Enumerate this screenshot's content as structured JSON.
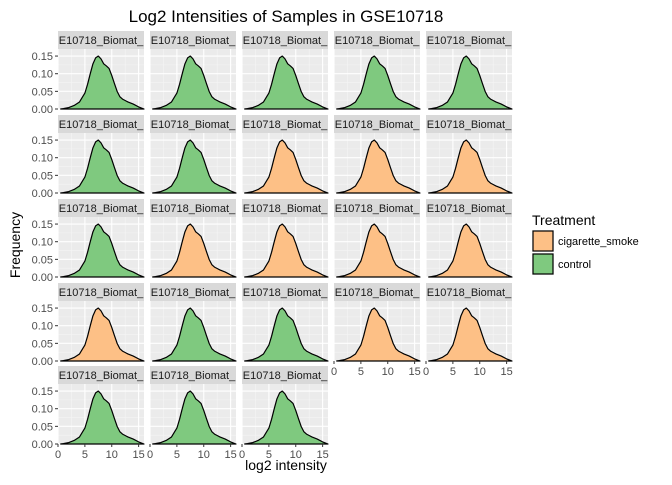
{
  "chart_data": {
    "type": "area",
    "title": "Log2 Intensities of Samples in GSE10718",
    "xlabel": "log2 intensity",
    "ylabel": "Frequency",
    "xlim": [
      0,
      16
    ],
    "ylim": [
      0,
      0.17
    ],
    "x_ticks": [
      0,
      5,
      10,
      15
    ],
    "x_tick_labels": [
      "0",
      "5",
      "10",
      "15"
    ],
    "y_ticks": [
      0,
      0.05,
      0.1,
      0.15
    ],
    "y_tick_labels": [
      "0.00",
      "0.05",
      "0.10",
      "0.15"
    ],
    "grid": true,
    "legend": {
      "title": "Treatment",
      "placement": "right",
      "entries": [
        {
          "label": "cigarette_smoke",
          "color": "#fdc086"
        },
        {
          "label": "control",
          "color": "#7fc97f"
        }
      ]
    },
    "facet_columns": 5,
    "facet_label_text": "E10718_Bioma",
    "density_x": [
      0.5,
      1,
      2,
      3,
      4,
      5,
      5.5,
      6,
      6.5,
      7,
      7.5,
      8,
      8.5,
      9,
      9.5,
      10,
      10.5,
      11,
      11.5,
      12,
      12.5,
      13,
      14,
      15,
      16
    ],
    "density_y": [
      0.0,
      0.001,
      0.004,
      0.01,
      0.02,
      0.045,
      0.07,
      0.1,
      0.128,
      0.145,
      0.15,
      0.142,
      0.128,
      0.122,
      0.115,
      0.095,
      0.072,
      0.05,
      0.035,
      0.028,
      0.024,
      0.02,
      0.014,
      0.006,
      0.0
    ],
    "panels": [
      {
        "label": "E10718_Biomat_",
        "treatment": "control"
      },
      {
        "label": "E10718_Biomat_",
        "treatment": "control"
      },
      {
        "label": "E10718_Biomat_",
        "treatment": "control"
      },
      {
        "label": "E10718_Biomat_",
        "treatment": "control"
      },
      {
        "label": "E10718_Biomat_",
        "treatment": "control"
      },
      {
        "label": "E10718_Biomat_",
        "treatment": "control"
      },
      {
        "label": "E10718_Biomat_",
        "treatment": "control"
      },
      {
        "label": "E10718_Biomat_",
        "treatment": "cigarette_smoke"
      },
      {
        "label": "E10718_Biomat_",
        "treatment": "cigarette_smoke"
      },
      {
        "label": "E10718_Biomat_",
        "treatment": "cigarette_smoke"
      },
      {
        "label": "E10718_Biomat_",
        "treatment": "control"
      },
      {
        "label": "E10718_Biomat_",
        "treatment": "cigarette_smoke"
      },
      {
        "label": "E10718_Biomat_",
        "treatment": "cigarette_smoke"
      },
      {
        "label": "E10718_Biomat_",
        "treatment": "cigarette_smoke"
      },
      {
        "label": "E10718_Biomat_",
        "treatment": "cigarette_smoke"
      },
      {
        "label": "E10718_Biomat_",
        "treatment": "cigarette_smoke"
      },
      {
        "label": "E10718_Biomat_",
        "treatment": "control"
      },
      {
        "label": "E10718_Biomat_",
        "treatment": "control"
      },
      {
        "label": "E10718_Biomat_",
        "treatment": "cigarette_smoke"
      },
      {
        "label": "E10718_Biomat_",
        "treatment": "cigarette_smoke"
      },
      {
        "label": "E10718_Biomat_",
        "treatment": "control"
      },
      {
        "label": "E10718_Biomat_",
        "treatment": "control"
      },
      {
        "label": "E10718_Biomat_",
        "treatment": "control"
      }
    ]
  }
}
